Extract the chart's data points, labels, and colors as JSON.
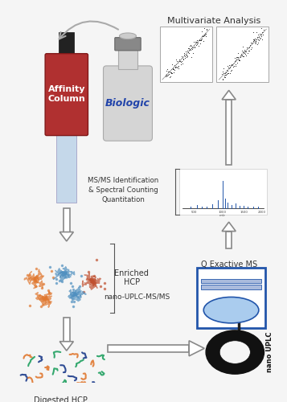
{
  "bg_color": "#f5f5f5",
  "affinity_box_color": "#b03030",
  "affinity_text": "Affinity\nColumn",
  "biologic_text": "Biologic",
  "multivariate_text": "Multivariate Analysis",
  "msms_text": "MS/MS Identification\n& Spectral Counting\nQuantitation",
  "enriched_text": "Enriched\nHCP",
  "nano_uplc_ms_text": "nano-UPLC-MS/MS",
  "q_exactive_text": "Q Exactive MS",
  "digested_text": "Digested HCP",
  "nano_uplc_label": "nano UPLC",
  "instrument_color": "#2255aa",
  "scatter_dot_color": "#444444",
  "spectrum_bar_color": "#2255aa",
  "protein_colors": [
    "#e07830",
    "#5090c0",
    "#c05030"
  ],
  "peptide_colors": [
    "#e07830",
    "#1a3a8a",
    "#20a060"
  ]
}
